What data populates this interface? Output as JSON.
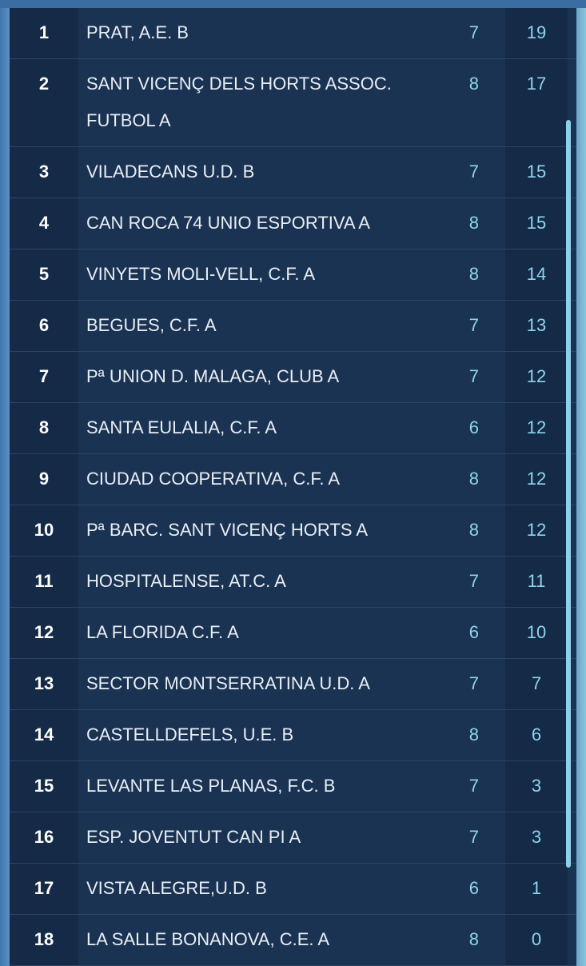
{
  "table": {
    "rows": [
      [
        1,
        "PRAT, A.E. B",
        7,
        19
      ],
      [
        2,
        "SANT VICENÇ DELS HORTS ASSOC. FUTBOL A",
        8,
        17
      ],
      [
        3,
        "VILADECANS U.D. B",
        7,
        15
      ],
      [
        4,
        "CAN ROCA 74 UNIO ESPORTIVA A",
        8,
        15
      ],
      [
        5,
        "VINYETS MOLI-VELL, C.F. A",
        8,
        14
      ],
      [
        6,
        "BEGUES, C.F. A",
        7,
        13
      ],
      [
        7,
        "Pª UNION D. MALAGA, CLUB A",
        7,
        12
      ],
      [
        8,
        "SANTA EULALIA, C.F. A",
        6,
        12
      ],
      [
        9,
        "CIUDAD COOPERATIVA, C.F. A",
        8,
        12
      ],
      [
        10,
        "Pª BARC. SANT VICENÇ HORTS A",
        8,
        12
      ],
      [
        11,
        "HOSPITALENSE, AT.C. A",
        7,
        11
      ],
      [
        12,
        "LA FLORIDA C.F. A",
        6,
        10
      ],
      [
        13,
        "SECTOR MONTSERRATINA U.D. A",
        7,
        7
      ],
      [
        14,
        "CASTELLDEFELS, U.E. B",
        8,
        6
      ],
      [
        15,
        "LEVANTE LAS PLANAS, F.C. B",
        7,
        3
      ],
      [
        16,
        "ESP. JOVENTUT CAN PI A",
        7,
        3
      ],
      [
        17,
        "VISTA ALEGRE,U.D. B",
        6,
        1
      ],
      [
        18,
        "LA SALLE BONANOVA, C.E. A",
        8,
        0
      ]
    ]
  }
}
